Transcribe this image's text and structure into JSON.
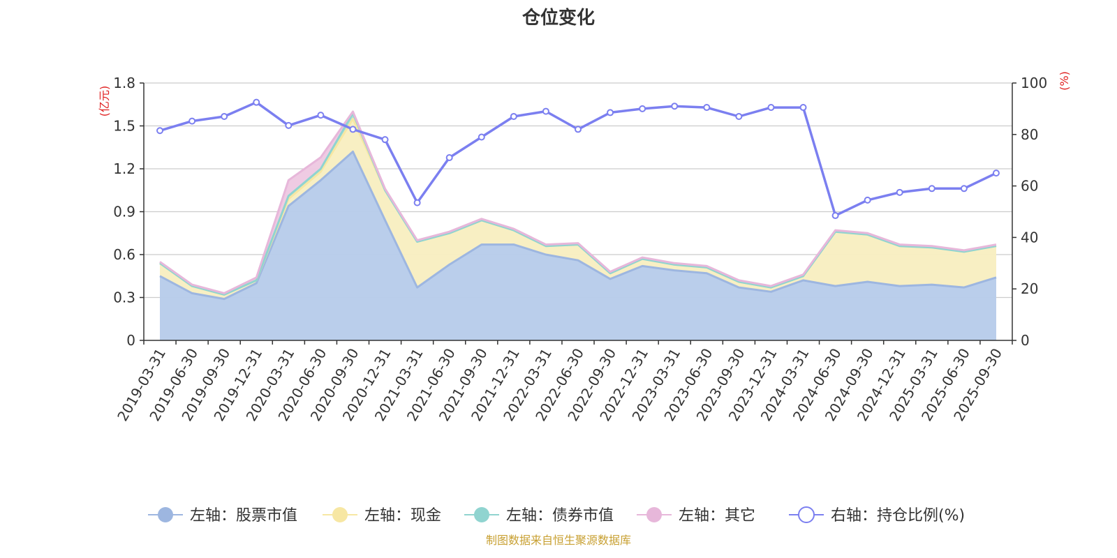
{
  "chart_data": {
    "type": "area",
    "title": "仓位变化",
    "left_axis": {
      "unit": "(亿元)",
      "ylim": [
        0,
        1.8
      ],
      "ticks": [
        "0",
        "0.3",
        "0.6",
        "0.9",
        "1.2",
        "1.5",
        "1.8"
      ],
      "tick_values": [
        0,
        0.3,
        0.6,
        0.9,
        1.2,
        1.5,
        1.8
      ]
    },
    "right_axis": {
      "unit": "(%)",
      "ylim": [
        0,
        100
      ],
      "ticks": [
        "0",
        "20",
        "40",
        "60",
        "80",
        "100"
      ],
      "tick_values": [
        0,
        20,
        40,
        60,
        80,
        100
      ]
    },
    "grid": true,
    "legend_position": "bottom",
    "categories": [
      "2019-03-31",
      "2019-06-30",
      "2019-09-30",
      "2019-12-31",
      "2020-03-31",
      "2020-06-30",
      "2020-09-30",
      "2020-12-31",
      "2021-03-31",
      "2021-06-30",
      "2021-09-30",
      "2021-12-31",
      "2022-03-31",
      "2022-06-30",
      "2022-09-30",
      "2022-12-31",
      "2023-03-31",
      "2023-06-30",
      "2023-09-30",
      "2023-12-31",
      "2024-03-31",
      "2024-06-30",
      "2024-09-30",
      "2024-12-31",
      "2025-03-31",
      "2025-06-30",
      "2025-09-30"
    ],
    "series": [
      {
        "name": "左轴：股票市值",
        "axis": "left",
        "type": "area",
        "color": "#9db6e0",
        "fill": "#b6cbea",
        "values": [
          0.45,
          0.33,
          0.29,
          0.4,
          0.94,
          1.12,
          1.32,
          0.84,
          0.37,
          0.53,
          0.67,
          0.67,
          0.6,
          0.56,
          0.43,
          0.52,
          0.49,
          0.47,
          0.37,
          0.34,
          0.42,
          0.38,
          0.41,
          0.38,
          0.39,
          0.37,
          0.44
        ]
      },
      {
        "name": "左轴：现金",
        "axis": "left",
        "type": "area",
        "color": "#f7e7a3",
        "fill": "#f8eec0",
        "values": [
          0.09,
          0.05,
          0.03,
          0.02,
          0.05,
          0.06,
          0.23,
          0.21,
          0.32,
          0.22,
          0.17,
          0.1,
          0.06,
          0.11,
          0.04,
          0.05,
          0.04,
          0.04,
          0.04,
          0.03,
          0.03,
          0.38,
          0.33,
          0.28,
          0.26,
          0.25,
          0.22
        ]
      },
      {
        "name": "左轴：债券市值",
        "axis": "left",
        "type": "area",
        "color": "#90d4d0",
        "fill": "#a8dcd6",
        "values": [
          0,
          0,
          0,
          0,
          0.02,
          0.02,
          0.04,
          0,
          0,
          0,
          0,
          0,
          0,
          0,
          0,
          0,
          0,
          0,
          0,
          0,
          0,
          0,
          0,
          0,
          0,
          0,
          0
        ]
      },
      {
        "name": "左轴：其它",
        "axis": "left",
        "type": "area",
        "color": "#e7b7da",
        "fill": "#eec8e2",
        "values": [
          0.01,
          0.01,
          0.01,
          0.02,
          0.11,
          0.08,
          0.01,
          0.01,
          0.01,
          0.01,
          0.01,
          0.01,
          0.01,
          0.01,
          0.01,
          0.01,
          0.01,
          0.01,
          0.01,
          0.01,
          0.01,
          0.01,
          0.01,
          0.01,
          0.01,
          0.01,
          0.01
        ]
      },
      {
        "name": "右轴：持仓比例(%)",
        "axis": "right",
        "type": "line",
        "color": "#7b7ff0",
        "values": [
          81.5,
          85.2,
          87.0,
          92.5,
          83.5,
          87.5,
          82.0,
          78.0,
          53.5,
          71.0,
          79.0,
          87.0,
          89.0,
          82.0,
          88.5,
          90.0,
          91.0,
          90.5,
          87.0,
          90.5,
          90.5,
          48.5,
          54.5,
          57.5,
          59.0,
          59.0,
          65.0
        ]
      }
    ]
  },
  "footer": {
    "source": "制图数据来自恒生聚源数据库",
    "source_color": "#c8a032"
  },
  "colors": {
    "unit_color": "#e02020",
    "grid_color": "#cccccc",
    "axis_color": "#333333"
  }
}
